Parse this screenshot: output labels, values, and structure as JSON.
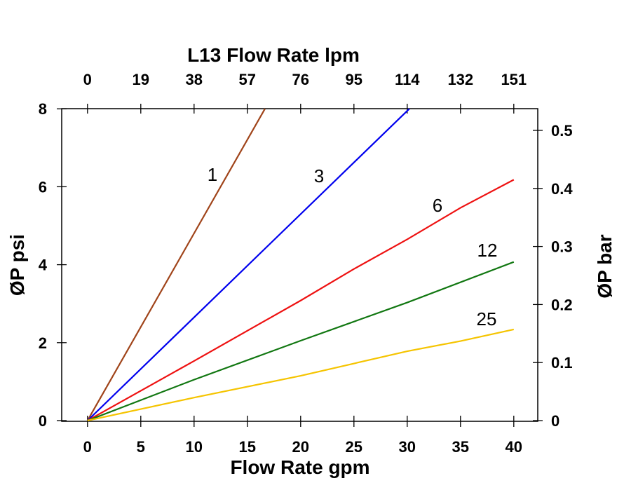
{
  "chart_data": {
    "type": "line",
    "title": "L13 Flow Rate lpm",
    "xlabel": "Flow Rate gpm",
    "ylabel": "ØP psi",
    "y2label": "ØP bar",
    "xlim": [
      -2.5,
      42.5
    ],
    "ylim": [
      0,
      8
    ],
    "y2lim": [
      0,
      0.5517
    ],
    "x_ticks": [
      0,
      5,
      10,
      15,
      20,
      25,
      30,
      35,
      40
    ],
    "x_tick_labels": [
      "0",
      "5",
      "10",
      "15",
      "20",
      "25",
      "30",
      "35",
      "40"
    ],
    "x2_tick_labels": [
      "0",
      "19",
      "38",
      "57",
      "76",
      "95",
      "114",
      "132",
      "151"
    ],
    "y_ticks": [
      0,
      2,
      4,
      6,
      8
    ],
    "y_tick_labels": [
      "0",
      "2",
      "4",
      "6",
      "8"
    ],
    "y2_ticks": [
      0,
      0.1,
      0.2,
      0.3,
      0.4,
      0.5
    ],
    "y2_tick_labels": [
      "0",
      "0.1",
      "0.2",
      "0.3",
      "0.4",
      "0.5"
    ],
    "grid": false,
    "series": [
      {
        "name": "1",
        "color": "#a0441a",
        "x": [
          0,
          16.65
        ],
        "y": [
          0,
          8
        ]
      },
      {
        "name": "3",
        "color": "#0000ee",
        "x": [
          0,
          30.2
        ],
        "y": [
          0,
          8
        ]
      },
      {
        "name": "6",
        "color": "#ee1111",
        "x": [
          0,
          10,
          20,
          25,
          30,
          35,
          40
        ],
        "y": [
          0,
          1.53,
          3.08,
          3.89,
          4.65,
          5.46,
          6.18
        ]
      },
      {
        "name": "12",
        "color": "#117711",
        "x": [
          0,
          10,
          20,
          30,
          40
        ],
        "y": [
          0,
          1.05,
          2.05,
          3.03,
          4.07
        ]
      },
      {
        "name": "25",
        "color": "#f5c400",
        "x": [
          0,
          10,
          20,
          30,
          35,
          40
        ],
        "y": [
          0,
          0.59,
          1.15,
          1.78,
          2.04,
          2.34
        ]
      }
    ]
  }
}
